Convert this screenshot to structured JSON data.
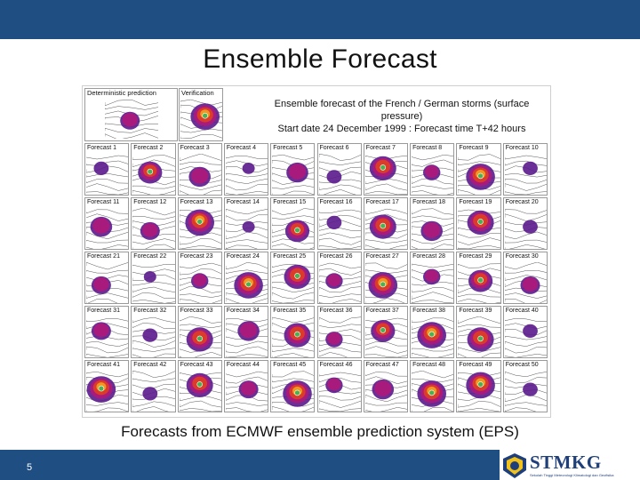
{
  "slide": {
    "title": "Ensemble Forecast",
    "page_number": "5",
    "caption": "Forecasts from ECMWF ensemble prediction system (EPS)",
    "colors": {
      "bar": "#1f4e82",
      "text": "#111111"
    }
  },
  "figure": {
    "header_line1": "Ensemble forecast of the French / German storms (surface pressure)",
    "header_line2": "Start date 24 December 1999 : Forecast time T+42 hours",
    "deterministic_label": "Deterministic prediction",
    "verification_label": "Verification",
    "forecast_labels": [
      "Forecast 1",
      "Forecast 2",
      "Forecast 3",
      "Forecast 4",
      "Forecast 5",
      "Forecast 6",
      "Forecast 7",
      "Forecast 8",
      "Forecast 9",
      "Forecast 10",
      "Forecast 11",
      "Forecast 12",
      "Forecast 13",
      "Forecast 14",
      "Forecast 15",
      "Forecast 16",
      "Forecast 17",
      "Forecast 18",
      "Forecast 19",
      "Forecast 20",
      "Forecast 21",
      "Forecast 22",
      "Forecast 23",
      "Forecast 24",
      "Forecast 25",
      "Forecast 26",
      "Forecast 27",
      "Forecast 28",
      "Forecast 29",
      "Forecast 30",
      "Forecast 31",
      "Forecast 32",
      "Forecast 33",
      "Forecast 34",
      "Forecast 35",
      "Forecast 36",
      "Forecast 37",
      "Forecast 38",
      "Forecast 39",
      "Forecast 40",
      "Forecast 41",
      "Forecast 42",
      "Forecast 43",
      "Forecast 44",
      "Forecast 45",
      "Forecast 46",
      "Forecast 47",
      "Forecast 48",
      "Forecast 49",
      "Forecast 50"
    ],
    "storm_intensity": [
      0.3,
      0.7,
      0.6,
      0.2,
      0.6,
      0.3,
      0.8,
      0.4,
      0.9,
      0.3,
      0.6,
      0.5,
      0.9,
      0.2,
      0.7,
      0.3,
      0.8,
      0.6,
      0.8,
      0.3,
      0.5,
      0.2,
      0.4,
      0.9,
      0.8,
      0.4,
      0.9,
      0.4,
      0.7,
      0.5,
      0.5,
      0.3,
      0.8,
      0.6,
      0.8,
      0.4,
      0.7,
      0.9,
      0.8,
      0.3,
      0.9,
      0.3,
      0.8,
      0.5,
      0.9,
      0.4,
      0.6,
      0.9,
      0.9,
      0.3
    ]
  },
  "logo": {
    "name": "STMKG",
    "subtitle": "Sekolah Tinggi Meteorologi Klimatologi dan Geofisika"
  }
}
